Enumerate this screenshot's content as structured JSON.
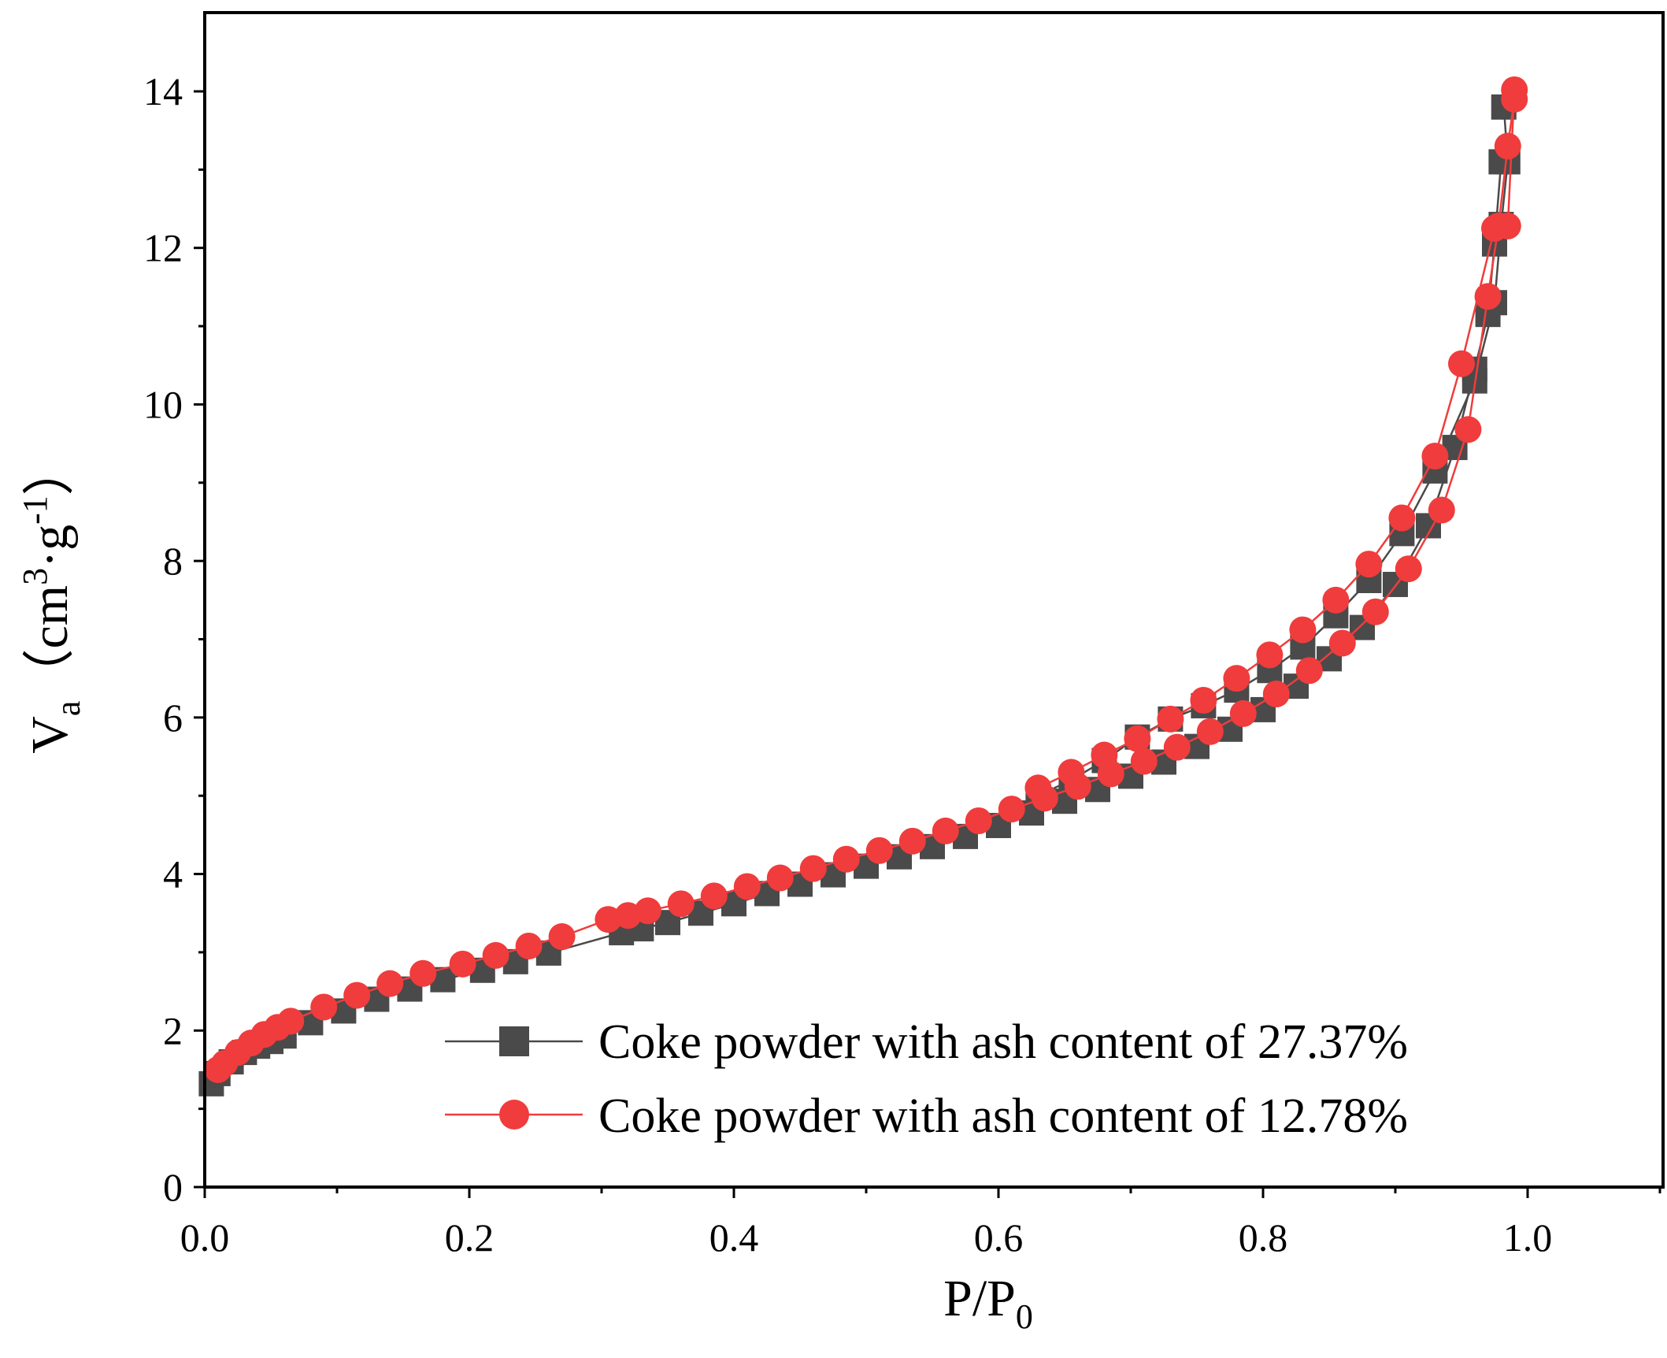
{
  "chart_data": {
    "type": "line",
    "title": "",
    "xlabel": "P/P0",
    "xlabel_main": "P/P",
    "xlabel_sub": "0",
    "ylabel": "Va (cm3·g-1)",
    "ylabel_main": "V",
    "ylabel_sub": "a",
    "ylabel_unit_open": "（cm",
    "ylabel_unit_sup1": "3",
    "ylabel_unit_mid": "·g",
    "ylabel_unit_sup2": "-1",
    "ylabel_unit_close": "）",
    "xlim": [
      0.0,
      1.1
    ],
    "ylim": [
      0,
      15
    ],
    "xticks": [
      0.0,
      0.2,
      0.4,
      0.6,
      0.8,
      1.0
    ],
    "xtick_labels": [
      "0.0",
      "0.2",
      "0.4",
      "0.6",
      "0.8",
      "1.0"
    ],
    "yticks": [
      0,
      2,
      4,
      6,
      8,
      10,
      12,
      14
    ],
    "ytick_labels": [
      "0",
      "2",
      "4",
      "6",
      "8",
      "10",
      "12",
      "14"
    ],
    "grid": false,
    "legend_position": "bottom-right",
    "series": [
      {
        "name": "Coke powder with ash content of 27.37%",
        "color": "#4a4a4a",
        "marker": "square",
        "adsorption": {
          "x": [
            0.005,
            0.01,
            0.02,
            0.03,
            0.04,
            0.05,
            0.06,
            0.08,
            0.105,
            0.13,
            0.155,
            0.18,
            0.21,
            0.235,
            0.26,
            0.315,
            0.33,
            0.35,
            0.375,
            0.4,
            0.425,
            0.45,
            0.475,
            0.5,
            0.525,
            0.55,
            0.575,
            0.6,
            0.625,
            0.65,
            0.675,
            0.7,
            0.725,
            0.75,
            0.775,
            0.8,
            0.825,
            0.85,
            0.875,
            0.9,
            0.925,
            0.945,
            0.96,
            0.97,
            0.975,
            0.98
          ],
          "y": [
            1.32,
            1.45,
            1.6,
            1.72,
            1.8,
            1.86,
            1.93,
            2.1,
            2.25,
            2.4,
            2.53,
            2.65,
            2.77,
            2.88,
            2.99,
            3.25,
            3.3,
            3.38,
            3.5,
            3.62,
            3.75,
            3.87,
            3.99,
            4.1,
            4.22,
            4.35,
            4.48,
            4.62,
            4.78,
            4.93,
            5.08,
            5.25,
            5.43,
            5.63,
            5.85,
            6.1,
            6.4,
            6.75,
            7.15,
            7.7,
            8.45,
            9.45,
            10.45,
            11.15,
            12.05,
            13.1
          ]
        },
        "desorption": {
          "x": [
            0.982,
            0.985,
            0.98,
            0.975,
            0.96,
            0.93,
            0.905,
            0.88,
            0.855,
            0.83,
            0.805,
            0.78,
            0.755,
            0.73,
            0.705,
            0.68,
            0.655,
            0.63
          ],
          "y": [
            13.8,
            13.1,
            12.3,
            11.3,
            10.3,
            9.15,
            8.35,
            7.75,
            7.3,
            6.9,
            6.6,
            6.35,
            6.15,
            5.98,
            5.75,
            5.45,
            5.2,
            5.0
          ]
        }
      },
      {
        "name": "Coke powder with ash content of 12.78%",
        "color": "#f03c3c",
        "marker": "circle",
        "adsorption": {
          "x": [
            0.01,
            0.015,
            0.025,
            0.035,
            0.045,
            0.055,
            0.065,
            0.09,
            0.115,
            0.14,
            0.165,
            0.195,
            0.22,
            0.245,
            0.27,
            0.305,
            0.32,
            0.335,
            0.36,
            0.385,
            0.41,
            0.435,
            0.46,
            0.485,
            0.51,
            0.535,
            0.56,
            0.585,
            0.61,
            0.635,
            0.66,
            0.685,
            0.71,
            0.735,
            0.76,
            0.785,
            0.81,
            0.835,
            0.86,
            0.885,
            0.91,
            0.935,
            0.955,
            0.97,
            0.978,
            0.985,
            0.99
          ],
          "y": [
            1.5,
            1.58,
            1.72,
            1.84,
            1.95,
            2.04,
            2.12,
            2.3,
            2.45,
            2.6,
            2.73,
            2.85,
            2.96,
            3.08,
            3.2,
            3.42,
            3.47,
            3.53,
            3.62,
            3.72,
            3.84,
            3.95,
            4.07,
            4.19,
            4.3,
            4.42,
            4.55,
            4.68,
            4.83,
            4.97,
            5.12,
            5.28,
            5.44,
            5.62,
            5.82,
            6.05,
            6.3,
            6.6,
            6.95,
            7.35,
            7.9,
            8.65,
            9.68,
            11.38,
            12.28,
            13.3,
            13.9
          ]
        },
        "desorption": {
          "x": [
            0.99,
            0.985,
            0.975,
            0.95,
            0.93,
            0.905,
            0.88,
            0.855,
            0.83,
            0.805,
            0.78,
            0.755,
            0.73,
            0.705,
            0.68,
            0.655,
            0.63
          ],
          "y": [
            14.02,
            12.28,
            12.25,
            10.52,
            9.34,
            8.55,
            7.96,
            7.5,
            7.12,
            6.8,
            6.5,
            6.22,
            5.98,
            5.73,
            5.52,
            5.3,
            5.1
          ]
        }
      }
    ]
  },
  "legend": {
    "items": [
      {
        "label": "Coke powder with ash content of 27.37%"
      },
      {
        "label": "Coke powder with ash content of 12.78%"
      }
    ]
  }
}
